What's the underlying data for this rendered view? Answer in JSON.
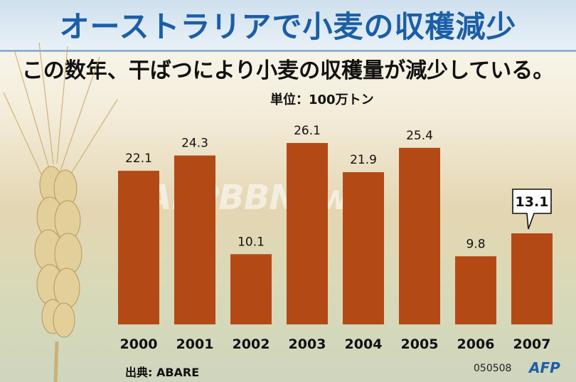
{
  "header": {
    "title": "オーストラリアで小麦の収穫減少",
    "subtitle": "この数年、干ばつにより小麦の収穫量が減少している。",
    "unit": "単位：100万トン"
  },
  "watermark": "AFPBBNews",
  "footer": {
    "source": "出典: ABARE",
    "code": "050508",
    "logo": "AFP"
  },
  "colors": {
    "bar": "#b34a16",
    "title": "#1b5ea6"
  },
  "chart_data": {
    "type": "bar",
    "categories": [
      "2000",
      "2001",
      "2002",
      "2003",
      "2004",
      "2005",
      "2006",
      "2007"
    ],
    "values": [
      22.1,
      24.3,
      10.1,
      26.1,
      21.9,
      25.4,
      9.8,
      13.1
    ],
    "value_labels": [
      "22.1",
      "24.3",
      "10.1",
      "26.1",
      "21.9",
      "25.4",
      "9.8",
      "13.1"
    ],
    "highlight_index": 7,
    "ylim": [
      0,
      28
    ],
    "grid": false,
    "legend": "none"
  }
}
